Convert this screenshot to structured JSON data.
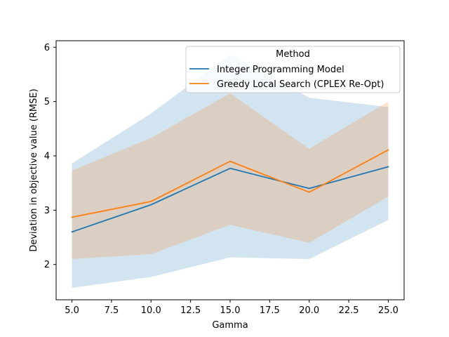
{
  "chart_data": {
    "type": "line",
    "title": "",
    "xlabel": "Gamma",
    "ylabel": "Deviation in objective value (RMSE)",
    "xlim": [
      4.0,
      26.0
    ],
    "ylim": [
      1.35,
      6.12
    ],
    "x_ticks": [
      5.0,
      7.5,
      10.0,
      12.5,
      15.0,
      17.5,
      20.0,
      22.5,
      25.0
    ],
    "x_tick_labels": [
      "5.0",
      "7.5",
      "10.0",
      "12.5",
      "15.0",
      "17.5",
      "20.0",
      "22.5",
      "25.0"
    ],
    "y_ticks": [
      2,
      3,
      4,
      5,
      6
    ],
    "y_tick_labels": [
      "2",
      "3",
      "4",
      "5",
      "6"
    ],
    "x": [
      5,
      10,
      15,
      20,
      25
    ],
    "grid": false,
    "legend": {
      "title": "Method",
      "placement": "top-right"
    },
    "series": [
      {
        "name": "Integer Programming Model",
        "color": "#1f77b4",
        "values": [
          2.6,
          3.1,
          3.77,
          3.4,
          3.8
        ],
        "band_lower": [
          1.57,
          1.77,
          2.13,
          2.1,
          2.82
        ],
        "band_upper": [
          3.86,
          4.78,
          5.86,
          5.07,
          4.9
        ]
      },
      {
        "name": "Greedy Local Search (CPLEX Re-Opt)",
        "color": "#ff7f0e",
        "values": [
          2.87,
          3.16,
          3.9,
          3.33,
          4.11
        ],
        "band_lower": [
          2.1,
          2.19,
          2.73,
          2.4,
          3.25
        ],
        "band_upper": [
          3.73,
          4.33,
          5.15,
          4.13,
          5.0
        ]
      }
    ]
  }
}
